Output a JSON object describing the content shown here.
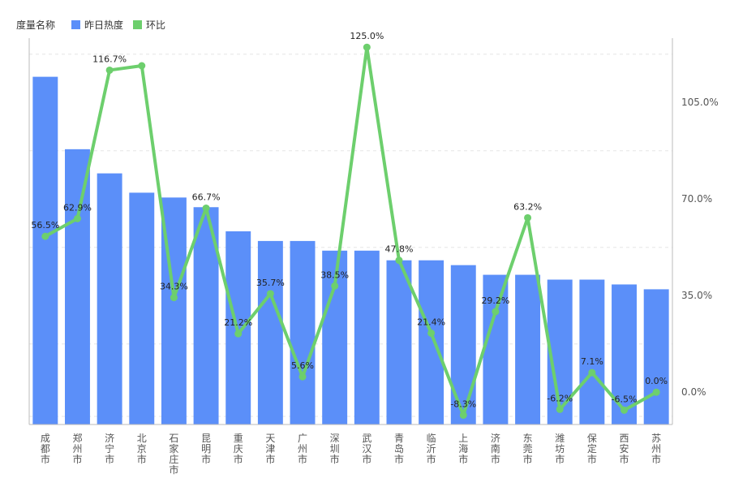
{
  "chart_data": {
    "type": "bar-line",
    "legend": {
      "title": "度量名称",
      "items": [
        {
          "name": "昨日热度",
          "color": "#5B8FF9",
          "kind": "bar"
        },
        {
          "name": "环比",
          "color": "#6DCF6D",
          "kind": "line"
        }
      ],
      "placement": "top-left"
    },
    "categories": [
      "成都市",
      "郑州市",
      "济宁市",
      "北京市",
      "石家庄市",
      "昆明市",
      "重庆市",
      "天津市",
      "广州市",
      "深圳市",
      "武汉市",
      "青岛市",
      "临沂市",
      "上海市",
      "济南市",
      "东莞市",
      "潍坊市",
      "保定市",
      "西安市",
      "苏州市"
    ],
    "bar_series": {
      "name": "昨日热度",
      "values": [
        72,
        57,
        52,
        48,
        47,
        45,
        40,
        38,
        38,
        36,
        36,
        34,
        34,
        33,
        31,
        31,
        30,
        30,
        29,
        28
      ],
      "ylim": [
        0,
        80
      ]
    },
    "line_series": {
      "name": "环比",
      "values": [
        56.5,
        62.9,
        116.7,
        118.3,
        34.3,
        66.7,
        21.2,
        35.7,
        5.6,
        38.5,
        125.0,
        47.8,
        21.4,
        -8.3,
        29.2,
        63.2,
        -6.2,
        7.1,
        -6.5,
        0.0
      ],
      "labels": [
        "56.5%",
        "62.9%",
        "116.7%",
        "",
        "34.3%",
        "66.7%",
        "21.2%",
        "35.7%",
        "5.6%",
        "38.5%",
        "125.0%",
        "47.8%",
        "21.4%",
        "-8.3%",
        "29.2%",
        "63.2%",
        "-6.2%",
        "7.1%",
        "-6.5%",
        "0.0%"
      ],
      "ylim": [
        -11.7,
        128.3
      ],
      "right_ticks": [
        0,
        35,
        70,
        105
      ],
      "right_tick_labels": [
        "0.0%",
        "35.0%",
        "70.0%",
        "105.0%"
      ]
    },
    "grid": true
  }
}
